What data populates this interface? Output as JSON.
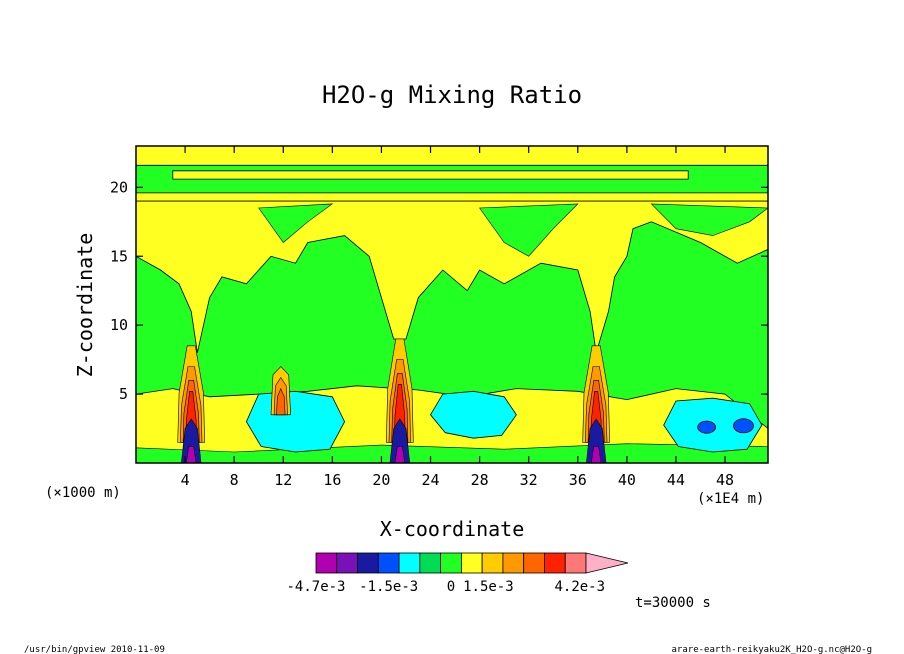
{
  "chart_data": {
    "type": "contour",
    "title": "H2O-g Mixing Ratio",
    "xlabel": "X-coordinate",
    "ylabel": "Z-coordinate",
    "x_unit_left": "(×1000 m)",
    "x_unit_right": "(×1E4 m)",
    "xlim": [
      0,
      51.5
    ],
    "ylim": [
      0,
      23
    ],
    "x_ticks": [
      4,
      8,
      12,
      16,
      20,
      24,
      28,
      32,
      36,
      40,
      44,
      48
    ],
    "x_tick_labels": [
      "4",
      "8",
      "12",
      "16",
      "20",
      "24",
      "28",
      "32",
      "36",
      "40",
      "44",
      "48"
    ],
    "y_ticks": [
      5,
      10,
      15,
      20
    ],
    "y_tick_labels": [
      "5",
      "10",
      "15",
      "20"
    ],
    "colorbar": {
      "levels": [
        -0.0047,
        -0.0032,
        -0.0015,
        0,
        0.0015,
        0.0042
      ],
      "labels": [
        "-4.7e-3",
        "-1.5e-3",
        "0",
        "1.5e-3",
        "4.2e-3"
      ],
      "colors": [
        "#b000b0",
        "#7a10b8",
        "#1a1aa0",
        "#0050ff",
        "#00ffff",
        "#00dd55",
        "#22ff22",
        "#ffff22",
        "#ffcc00",
        "#ff9900",
        "#ff6600",
        "#ff2200",
        "#ff7777",
        "#ffb0c8"
      ]
    },
    "time_label": "t=30000 s",
    "convective_plumes_x": [
      4.5,
      21.5,
      37.5
    ],
    "blue_regions": [
      {
        "x": [
          9,
          17
        ],
        "z": [
          1,
          5
        ]
      },
      {
        "x": [
          24,
          31
        ],
        "z": [
          2,
          5
        ]
      },
      {
        "x": [
          43,
          51
        ],
        "z": [
          1,
          4.5
        ]
      }
    ]
  },
  "footer": {
    "left": "/usr/bin/gpview  2010-11-09",
    "right": "arare-earth-reikyaku2K_H2O-g.nc@H2O-g"
  }
}
